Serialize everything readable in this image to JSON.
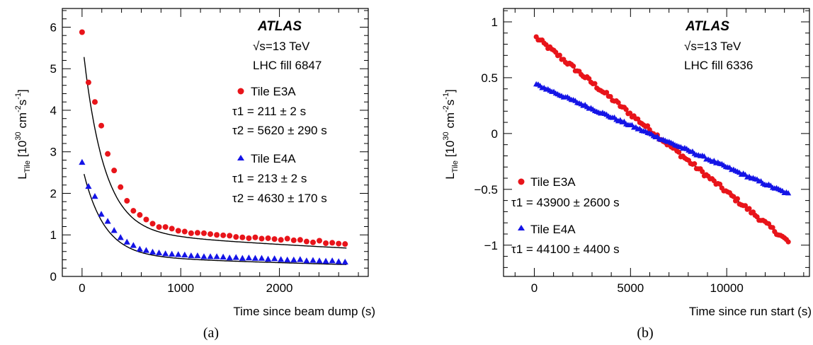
{
  "chart_data": [
    {
      "type": "scatter",
      "caption": "(a)",
      "experiment": "ATLAS",
      "energy": "s=13 TeV",
      "energy_symbol": "√",
      "run_info": "LHC fill 6847",
      "xlabel": "Time since beam dump (s)",
      "ylabel": "L_Tile [10^30 cm^-2 s^-1]",
      "xlim": [
        -200,
        2900
      ],
      "ylim": [
        0,
        6.45
      ],
      "xticks": [
        0,
        1000,
        2000
      ],
      "xtick_labels": [
        "0",
        "1000",
        "2000"
      ],
      "yticks": [
        0,
        1,
        2,
        3,
        4,
        5,
        6
      ],
      "ytick_labels": [
        "0",
        "1",
        "2",
        "3",
        "4",
        "5",
        "6"
      ],
      "fit_color": "#000000",
      "series": [
        {
          "name": "Tile E3A",
          "marker": "circle",
          "color": "#e8141a",
          "fit_label_1": "τ1 = 211 ± 2 s",
          "fit_label_2": "τ2 = 5620 ± 290 s",
          "x": [
            0,
            65,
            130,
            195,
            260,
            325,
            390,
            455,
            520,
            585,
            650,
            715,
            780,
            845,
            910,
            975,
            1040,
            1105,
            1170,
            1235,
            1300,
            1365,
            1430,
            1495,
            1560,
            1625,
            1690,
            1755,
            1820,
            1885,
            1950,
            2015,
            2080,
            2145,
            2210,
            2275,
            2340,
            2405,
            2470,
            2535,
            2600,
            2665
          ],
          "y": [
            5.88,
            4.67,
            4.2,
            3.63,
            2.95,
            2.55,
            2.15,
            1.82,
            1.58,
            1.48,
            1.37,
            1.27,
            1.19,
            1.19,
            1.15,
            1.1,
            1.08,
            1.04,
            1.05,
            1.04,
            1.02,
            1.0,
            0.99,
            0.98,
            0.95,
            0.94,
            0.92,
            0.94,
            0.91,
            0.92,
            0.9,
            0.88,
            0.91,
            0.87,
            0.88,
            0.84,
            0.82,
            0.86,
            0.8,
            0.81,
            0.79,
            0.78
          ],
          "fit": {
            "a1": 4.6,
            "t1": 211,
            "a2": 1.1,
            "t2": 5620
          }
        },
        {
          "name": "Tile E4A",
          "marker": "triangle",
          "color": "#1414e6",
          "fit_label_1": "τ1 = 213 ± 2 s",
          "fit_label_2": "τ2 = 4630 ± 170 s",
          "x": [
            0,
            65,
            130,
            195,
            260,
            325,
            390,
            455,
            520,
            585,
            650,
            715,
            780,
            845,
            910,
            975,
            1040,
            1105,
            1170,
            1235,
            1300,
            1365,
            1430,
            1495,
            1560,
            1625,
            1690,
            1755,
            1820,
            1885,
            1950,
            2015,
            2080,
            2145,
            2210,
            2275,
            2340,
            2405,
            2470,
            2535,
            2600,
            2665
          ],
          "y": [
            2.75,
            2.17,
            1.93,
            1.5,
            1.33,
            1.11,
            0.94,
            0.83,
            0.75,
            0.66,
            0.63,
            0.59,
            0.57,
            0.55,
            0.54,
            0.53,
            0.52,
            0.5,
            0.5,
            0.48,
            0.48,
            0.48,
            0.47,
            0.45,
            0.46,
            0.44,
            0.45,
            0.44,
            0.44,
            0.42,
            0.43,
            0.41,
            0.4,
            0.4,
            0.41,
            0.38,
            0.39,
            0.38,
            0.37,
            0.38,
            0.36,
            0.35
          ],
          "fit": {
            "a1": 2.15,
            "t1": 213,
            "a2": 0.51,
            "t2": 4630
          }
        }
      ]
    },
    {
      "type": "scatter",
      "caption": "(b)",
      "experiment": "ATLAS",
      "energy": "s=13 TeV",
      "energy_symbol": "√",
      "run_info": "LHC fill 6336",
      "xlabel": "Time since run start (s)",
      "ylabel": "L_Tile [10^30 cm^-2 s^-1]",
      "xlim": [
        -1600,
        14300
      ],
      "ylim": [
        -1.28,
        1.12
      ],
      "xticks": [
        0,
        5000,
        10000
      ],
      "xtick_labels": [
        "0",
        "5000",
        "10000"
      ],
      "yticks": [
        -1,
        -0.5,
        0,
        0.5,
        1
      ],
      "ytick_labels": [
        "−1",
        "−0.5",
        "0",
        "0.5",
        "1"
      ],
      "fit_color": "#000000",
      "series": [
        {
          "name": "Tile E3A",
          "marker": "circle",
          "color": "#e8141a",
          "fit_label_1": "τ1 = 43900 ± 2600 s",
          "x_start": 100,
          "x_end": 13200,
          "n_points": 130,
          "line": {
            "y_at_start": 0.86,
            "y_at_end": -0.97
          },
          "noise": 0.02
        },
        {
          "name": "Tile E4A",
          "marker": "triangle",
          "color": "#1414e6",
          "fit_label_1": "τ1 = 44100 ± 4400 s",
          "x_start": 100,
          "x_end": 13200,
          "n_points": 130,
          "line": {
            "y_at_start": 0.44,
            "y_at_end": -0.54
          },
          "noise": 0.01
        }
      ]
    }
  ]
}
